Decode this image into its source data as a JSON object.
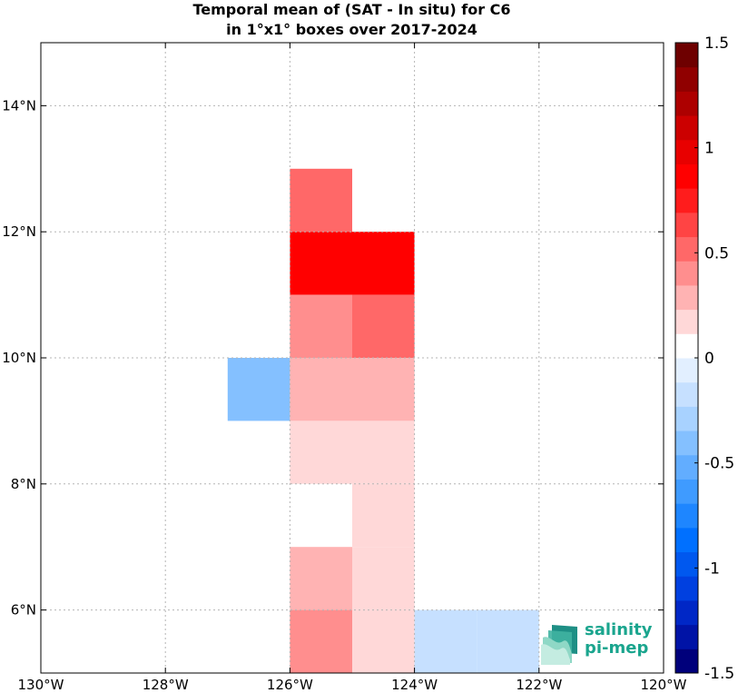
{
  "title_line1": "Temporal mean of (SAT - In situ) for C6",
  "title_line2": "in 1°x1° boxes over 2017-2024",
  "logo": {
    "line1": "salinity",
    "line2": "pi-mep",
    "icon": "wave-layers-icon"
  },
  "chart_data": {
    "type": "heatmap",
    "title": "Temporal mean of (SAT - In situ) for C6 in 1°x1° boxes over 2017-2024",
    "xlim": [
      -130,
      -120
    ],
    "ylim": [
      5,
      15
    ],
    "grid": true,
    "x_ticks": [
      {
        "value": -130,
        "label": "130°W"
      },
      {
        "value": -128,
        "label": "128°W"
      },
      {
        "value": -126,
        "label": "126°W"
      },
      {
        "value": -124,
        "label": "124°W"
      },
      {
        "value": -122,
        "label": "122°W"
      },
      {
        "value": -120,
        "label": "120°W"
      }
    ],
    "y_ticks": [
      {
        "value": 6,
        "label": "6°N"
      },
      {
        "value": 8,
        "label": "8°N"
      },
      {
        "value": 10,
        "label": "10°N"
      },
      {
        "value": 12,
        "label": "12°N"
      },
      {
        "value": 14,
        "label": "14°N"
      }
    ],
    "colorbar": {
      "range": [
        -1.5,
        1.5
      ],
      "n_levels": 26,
      "ticks": [
        {
          "value": 1.5,
          "label": "1.5"
        },
        {
          "value": 1,
          "label": "1"
        },
        {
          "value": 0.5,
          "label": "0.5"
        },
        {
          "value": 0,
          "label": "0"
        },
        {
          "value": -0.5,
          "label": "-0.5"
        },
        {
          "value": -1,
          "label": "-1"
        },
        {
          "value": -1.5,
          "label": "-1.5"
        }
      ],
      "colors": [
        "#00007b",
        "#0013a6",
        "#0027c6",
        "#0040e0",
        "#0058ef",
        "#0070ff",
        "#1e86ff",
        "#3f9bff",
        "#62adff",
        "#84c0ff",
        "#a8d2ff",
        "#c6e0ff",
        "#e2efff",
        "#ffffff",
        "#ffd8d8",
        "#ffb3b3",
        "#ff8e8e",
        "#ff6868",
        "#ff4444",
        "#ff1c1c",
        "#ff0000",
        "#e80000",
        "#cc0000",
        "#ad0000",
        "#900000",
        "#6e0000"
      ]
    },
    "cells": [
      {
        "lon": -126,
        "lat": 12,
        "value": 0.55
      },
      {
        "lon": -126,
        "lat": 11,
        "value": 0.85
      },
      {
        "lon": -125,
        "lat": 11,
        "value": 0.85
      },
      {
        "lon": -126,
        "lat": 10,
        "value": 0.35
      },
      {
        "lon": -125,
        "lat": 10,
        "value": 0.55
      },
      {
        "lon": -127,
        "lat": 9,
        "value": -0.4
      },
      {
        "lon": -126,
        "lat": 9,
        "value": 0.25
      },
      {
        "lon": -125,
        "lat": 9,
        "value": 0.25
      },
      {
        "lon": -126,
        "lat": 8,
        "value": 0.12
      },
      {
        "lon": -125,
        "lat": 8,
        "value": 0.12
      },
      {
        "lon": -126,
        "lat": 7,
        "value": 0.0
      },
      {
        "lon": -125,
        "lat": 7,
        "value": 0.12
      },
      {
        "lon": -126,
        "lat": 6,
        "value": 0.25
      },
      {
        "lon": -125,
        "lat": 6,
        "value": 0.12
      },
      {
        "lon": -126,
        "lat": 5,
        "value": 0.4
      },
      {
        "lon": -125,
        "lat": 5,
        "value": 0.12
      },
      {
        "lon": -124,
        "lat": 5,
        "value": -0.12
      },
      {
        "lon": -123,
        "lat": 5,
        "value": -0.12
      }
    ]
  }
}
